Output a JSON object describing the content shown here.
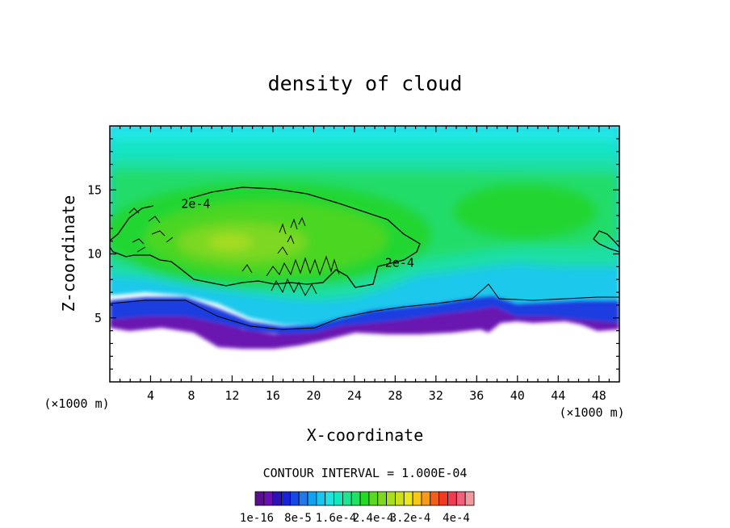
{
  "chart_data": {
    "type": "heatmap",
    "title": "density of cloud",
    "xlabel": "X-coordinate",
    "ylabel": "Z-coordinate",
    "x_unit": "(×1000 m)",
    "y_unit": "(×1000 m)",
    "xlim": [
      0,
      50
    ],
    "ylim": [
      0,
      20
    ],
    "x_ticks": [
      4,
      8,
      12,
      16,
      20,
      24,
      28,
      32,
      36,
      40,
      44,
      48
    ],
    "y_ticks": [
      5,
      10,
      15
    ],
    "contour_interval_text": "CONTOUR INTERVAL = 1.000E-04",
    "contour_labels": [
      {
        "text": "2e-4",
        "x": 7.0,
        "z": 13.9
      },
      {
        "text": "2e-4",
        "x": 27.0,
        "z": 9.3
      }
    ],
    "colorbar": {
      "colors": [
        "#5a0f8f",
        "#6a10b0",
        "#2d10b8",
        "#1a22d8",
        "#1648e6",
        "#2078ee",
        "#12a0f0",
        "#16c6f0",
        "#22e2e0",
        "#12e8bc",
        "#1ee690",
        "#22e060",
        "#22dc22",
        "#5ad822",
        "#7ed822",
        "#a6de20",
        "#cce020",
        "#ece820",
        "#f8c818",
        "#f89a18",
        "#f06018",
        "#f03a20",
        "#f03c50",
        "#f06078",
        "#f09aa0"
      ],
      "tick_labels": [
        "1e-16",
        "8e-5",
        "1.6e-4",
        "2.4e-4",
        "3.2e-4",
        "4e-4"
      ]
    },
    "grid": false
  }
}
